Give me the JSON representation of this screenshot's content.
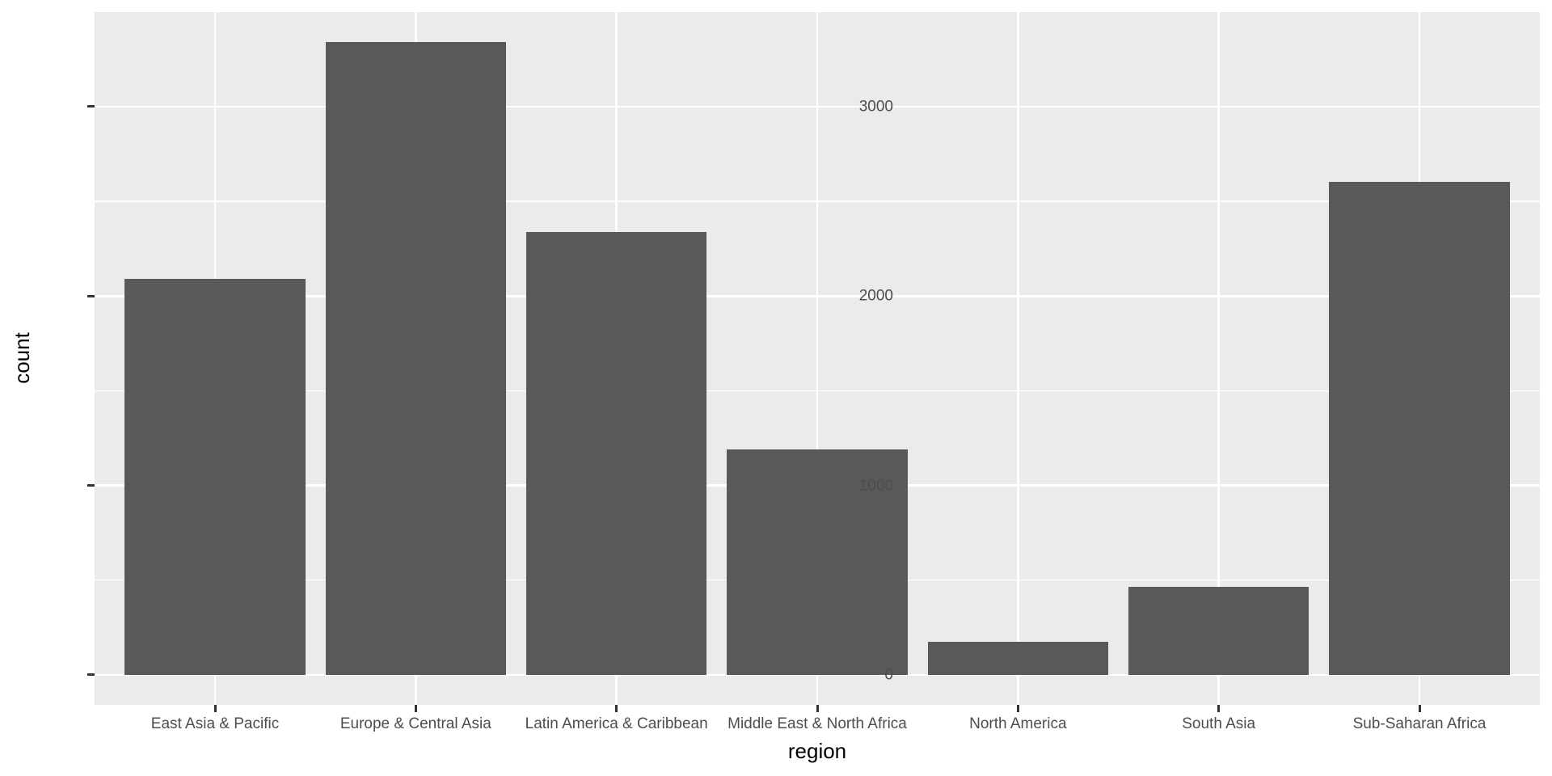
{
  "chart_data": {
    "type": "bar",
    "title": "",
    "xlabel": "region",
    "ylabel": "count",
    "categories": [
      "East Asia & Pacific",
      "Europe & Central Asia",
      "Latin America & Caribbean",
      "Middle East & North Africa",
      "North America",
      "South Asia",
      "Sub-Saharan Africa"
    ],
    "values": [
      2090,
      3340,
      2340,
      1190,
      175,
      465,
      2605
    ],
    "y_major_ticks": [
      0,
      1000,
      2000,
      3000
    ],
    "y_tick_labels": [
      "0",
      "1000",
      "2000",
      "3000"
    ],
    "y_minor_ticks": [
      500,
      1500,
      2500
    ],
    "ylim": [
      -158,
      3499
    ],
    "bar_width_fraction": 0.9,
    "legend": "none",
    "grid": "white major+minor horizontal lines; white major vertical line at each category",
    "style": {
      "bar_fill": "#595959",
      "panel_bg": "#EBEBEB",
      "grid_color": "#FFFFFF",
      "axis_text_color": "#4D4D4D",
      "tick_mark_color": "#333333",
      "axis_title_color": "#000000",
      "background": "#FFFFFF"
    }
  }
}
